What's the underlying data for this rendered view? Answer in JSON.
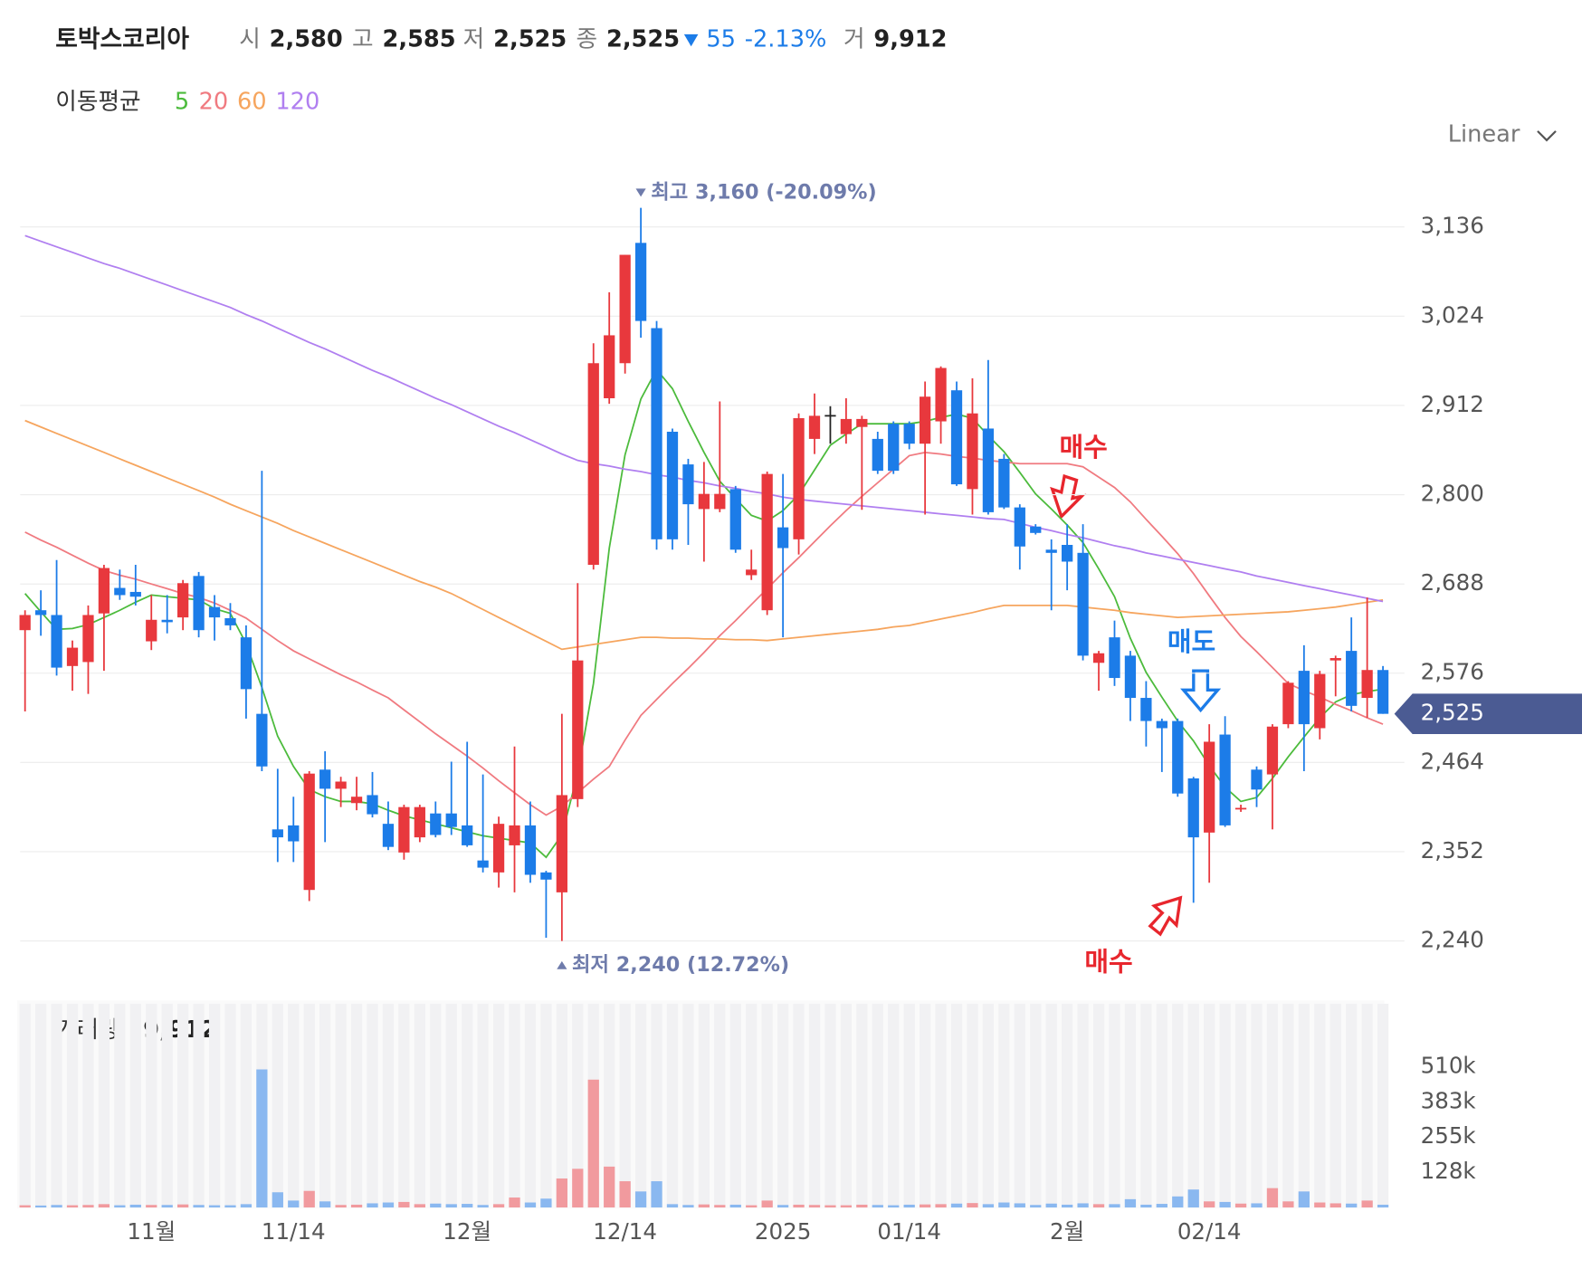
{
  "header": {
    "name": "토박스코리아",
    "fields": [
      {
        "label": "시",
        "value": "2,580"
      },
      {
        "label": "고",
        "value": "2,585"
      },
      {
        "label": "저",
        "value": "2,525"
      },
      {
        "label": "종",
        "value": "2,525"
      }
    ],
    "change": "55",
    "change_pct": "-2.13%",
    "volume_label": "거",
    "volume": "9,912"
  },
  "scale_selector": "Linear",
  "signals": [
    "매수",
    "매도",
    "매수"
  ],
  "chart_data": {
    "type": "candlestick",
    "legend_title": "이동평균",
    "up_color": "#e8383d",
    "down_color": "#1c7ce8",
    "flat_color": "#222222",
    "ylim": [
      2200,
      3220
    ],
    "yticks": [
      {
        "value": 2240,
        "label": "2,240"
      },
      {
        "value": 2352,
        "label": "2,352"
      },
      {
        "value": 2464,
        "label": "2,464"
      },
      {
        "value": 2576,
        "label": "2,576"
      },
      {
        "value": 2688,
        "label": "2,688"
      },
      {
        "value": 2800,
        "label": "2,800"
      },
      {
        "value": 2912,
        "label": "2,912"
      },
      {
        "value": 3024,
        "label": "3,024"
      },
      {
        "value": 3136,
        "label": "3,136"
      }
    ],
    "grid": true,
    "current_price": {
      "value": 2525,
      "label": "2,525"
    },
    "annotations": [
      {
        "kind": "max",
        "value": 3160,
        "text": "최고 3,160 (-20.09%)"
      },
      {
        "kind": "min",
        "value": 2240,
        "text": "최저 2,240 (12.72%)"
      }
    ],
    "categories": [
      null,
      null,
      null,
      null,
      null,
      null,
      null,
      null,
      "11월",
      null,
      null,
      null,
      null,
      null,
      null,
      null,
      null,
      "11/14",
      null,
      null,
      null,
      null,
      null,
      null,
      null,
      null,
      null,
      null,
      "12월",
      null,
      null,
      null,
      null,
      null,
      null,
      null,
      null,
      null,
      "12/14",
      null,
      null,
      null,
      null,
      null,
      null,
      null,
      null,
      null,
      "2025",
      null,
      null,
      null,
      null,
      null,
      null,
      null,
      "01/14",
      null,
      null,
      null,
      null,
      null,
      null,
      null,
      null,
      null,
      "2월",
      null,
      null,
      null,
      null,
      null,
      null,
      null,
      null,
      "02/14",
      null,
      null,
      null,
      null,
      null,
      null,
      null,
      null,
      null,
      null,
      null
    ],
    "open": [
      2630,
      2655,
      2649,
      2585,
      2590,
      2651,
      2683,
      2678,
      2616,
      2643,
      2646,
      2698,
      2659,
      2645,
      2621,
      2525,
      2380,
      2385,
      2304,
      2455,
      2431,
      2413,
      2423,
      2387,
      2351,
      2370,
      2400,
      2400,
      2385,
      2341,
      2326,
      2360,
      2385,
      2326,
      2301,
      2418,
      2712,
      2921,
      2965,
      3116,
      3009,
      2879,
      2838,
      2782,
      2782,
      2807,
      2699,
      2655,
      2759,
      2744,
      2870,
      2900,
      2876,
      2885,
      2870,
      2889,
      2889,
      2864,
      2892,
      2931,
      2807,
      2883,
      2845,
      2784,
      2760,
      2731,
      2737,
      2727,
      2589,
      2621,
      2598,
      2545,
      2516,
      2516,
      2444,
      2376,
      2499,
      2405,
      2455,
      2449,
      2512,
      2579,
      2507,
      2592,
      2604,
      2545,
      2580
    ],
    "high": [
      2655,
      2680,
      2718,
      2617,
      2661,
      2712,
      2706,
      2712,
      2674,
      2674,
      2693,
      2703,
      2674,
      2664,
      2636,
      2830,
      2456,
      2421,
      2453,
      2478,
      2446,
      2446,
      2452,
      2415,
      2411,
      2411,
      2415,
      2465,
      2490,
      2449,
      2396,
      2484,
      2415,
      2328,
      2525,
      2689,
      2990,
      3054,
      3101,
      3160,
      3018,
      2883,
      2845,
      2841,
      2917,
      2811,
      2731,
      2829,
      2826,
      2902,
      2927,
      2911,
      2921,
      2899,
      2879,
      2892,
      2892,
      2942,
      2961,
      2942,
      2946,
      2969,
      2851,
      2788,
      2763,
      2744,
      2763,
      2763,
      2604,
      2642,
      2604,
      2566,
      2519,
      2519,
      2446,
      2512,
      2522,
      2411,
      2459,
      2512,
      2566,
      2611,
      2579,
      2598,
      2646,
      2671,
      2585
    ],
    "low": [
      2528,
      2623,
      2573,
      2554,
      2550,
      2579,
      2668,
      2661,
      2605,
      2626,
      2630,
      2621,
      2617,
      2630,
      2519,
      2453,
      2339,
      2339,
      2290,
      2364,
      2408,
      2404,
      2395,
      2354,
      2342,
      2364,
      2370,
      2373,
      2358,
      2326,
      2307,
      2301,
      2313,
      2244,
      2240,
      2408,
      2706,
      2914,
      2952,
      2997,
      2731,
      2731,
      2737,
      2716,
      2778,
      2727,
      2693,
      2649,
      2621,
      2725,
      2851,
      2864,
      2864,
      2781,
      2826,
      2826,
      2857,
      2775,
      2864,
      2811,
      2775,
      2775,
      2782,
      2706,
      2750,
      2655,
      2680,
      2592,
      2554,
      2560,
      2516,
      2484,
      2452,
      2421,
      2288,
      2313,
      2383,
      2402,
      2408,
      2380,
      2507,
      2453,
      2493,
      2547,
      2528,
      2520,
      2525
    ],
    "close": [
      2649,
      2649,
      2583,
      2608,
      2649,
      2708,
      2674,
      2672,
      2643,
      2640,
      2689,
      2630,
      2646,
      2636,
      2556,
      2459,
      2370,
      2365,
      2450,
      2431,
      2440,
      2421,
      2399,
      2358,
      2408,
      2408,
      2373,
      2383,
      2360,
      2332,
      2387,
      2385,
      2323,
      2317,
      2423,
      2592,
      2965,
      3000,
      3101,
      3018,
      2744,
      2744,
      2788,
      2801,
      2801,
      2731,
      2706,
      2826,
      2733,
      2896,
      2899,
      2900,
      2895,
      2895,
      2830,
      2830,
      2864,
      2923,
      2959,
      2813,
      2902,
      2778,
      2784,
      2735,
      2752,
      2727,
      2716,
      2598,
      2601,
      2570,
      2545,
      2516,
      2507,
      2425,
      2370,
      2490,
      2385,
      2407,
      2430,
      2509,
      2564,
      2512,
      2575,
      2595,
      2535,
      2580,
      2525
    ],
    "moving_averages": [
      {
        "name": "5",
        "color": "#4cbb3c",
        "values": [
          2676,
          2653,
          2631,
          2632,
          2637,
          2646,
          2655,
          2665,
          2674,
          2672,
          2670,
          2668,
          2657,
          2651,
          2613,
          2558,
          2497,
          2459,
          2430,
          2421,
          2415,
          2415,
          2412,
          2404,
          2397,
          2392,
          2387,
          2382,
          2377,
          2372,
          2369,
          2366,
          2363,
          2345,
          2373,
          2450,
          2563,
          2733,
          2850,
          2920,
          2957,
          2933,
          2892,
          2853,
          2817,
          2795,
          2774,
          2767,
          2780,
          2800,
          2831,
          2862,
          2876,
          2889,
          2889,
          2889,
          2889,
          2892,
          2897,
          2901,
          2896,
          2874,
          2854,
          2828,
          2801,
          2782,
          2762,
          2740,
          2707,
          2672,
          2620,
          2577,
          2546,
          2516,
          2491,
          2460,
          2433,
          2415,
          2420,
          2444,
          2471,
          2496,
          2520,
          2540,
          2549,
          2553,
          2556
        ]
      },
      {
        "name": "20",
        "color": "#f07a80",
        "values": [
          2753,
          2743,
          2734,
          2724,
          2714,
          2705,
          2699,
          2694,
          2688,
          2682,
          2676,
          2671,
          2664,
          2655,
          2645,
          2631,
          2617,
          2604,
          2594,
          2584,
          2574,
          2565,
          2555,
          2545,
          2530,
          2515,
          2500,
          2486,
          2472,
          2457,
          2441,
          2426,
          2411,
          2398,
          2409,
          2426,
          2443,
          2459,
          2492,
          2523,
          2543,
          2563,
          2582,
          2602,
          2623,
          2642,
          2662,
          2682,
          2702,
          2721,
          2741,
          2761,
          2780,
          2798,
          2815,
          2832,
          2849,
          2853,
          2851,
          2848,
          2846,
          2843,
          2841,
          2839,
          2839,
          2839,
          2839,
          2835,
          2822,
          2809,
          2791,
          2769,
          2748,
          2726,
          2701,
          2673,
          2646,
          2622,
          2603,
          2583,
          2563,
          2554,
          2546,
          2537,
          2529,
          2520,
          2512
        ]
      },
      {
        "name": "60",
        "color": "#f6a55e",
        "values": [
          2893,
          2885,
          2877,
          2869,
          2861,
          2853,
          2845,
          2837,
          2829,
          2821,
          2813,
          2805,
          2797,
          2788,
          2780,
          2772,
          2764,
          2755,
          2747,
          2739,
          2731,
          2723,
          2715,
          2707,
          2699,
          2691,
          2684,
          2676,
          2666,
          2656,
          2646,
          2636,
          2626,
          2616,
          2606,
          2609,
          2612,
          2615,
          2618,
          2621,
          2621,
          2620,
          2620,
          2619,
          2619,
          2618,
          2618,
          2617,
          2619,
          2621,
          2623,
          2625,
          2627,
          2629,
          2631,
          2634,
          2636,
          2640,
          2644,
          2648,
          2652,
          2657,
          2661,
          2661,
          2661,
          2661,
          2661,
          2659,
          2657,
          2655,
          2652,
          2650,
          2648,
          2646,
          2647,
          2648,
          2649,
          2650,
          2651,
          2652,
          2653,
          2655,
          2657,
          2659,
          2662,
          2665,
          2668
        ]
      },
      {
        "name": "120",
        "color": "#b07ff0",
        "values": [
          3125,
          3118,
          3111,
          3104,
          3097,
          3090,
          3084,
          3077,
          3070,
          3063,
          3056,
          3049,
          3042,
          3035,
          3026,
          3018,
          3009,
          3000,
          2991,
          2983,
          2974,
          2965,
          2956,
          2948,
          2939,
          2930,
          2921,
          2913,
          2904,
          2895,
          2886,
          2878,
          2869,
          2860,
          2851,
          2843,
          2839,
          2836,
          2832,
          2829,
          2825,
          2822,
          2818,
          2815,
          2811,
          2808,
          2804,
          2801,
          2797,
          2794,
          2792,
          2790,
          2788,
          2786,
          2784,
          2782,
          2780,
          2778,
          2776,
          2774,
          2772,
          2770,
          2769,
          2764,
          2759,
          2755,
          2750,
          2746,
          2741,
          2736,
          2732,
          2727,
          2723,
          2719,
          2715,
          2711,
          2707,
          2703,
          2698,
          2694,
          2690,
          2686,
          2682,
          2678,
          2674,
          2670,
          2666
        ]
      }
    ],
    "volume": {
      "label": "거래량",
      "current": 9912,
      "current_label": "9,912",
      "up_color": "#f19a9e",
      "down_color": "#8ab8f0",
      "ylim": [
        0,
        738000
      ],
      "yticks": [
        {
          "value": 127500,
          "label": "128k"
        },
        {
          "value": 255000,
          "label": "255k"
        },
        {
          "value": 382500,
          "label": "383k"
        },
        {
          "value": 510000,
          "label": "510k"
        }
      ],
      "values": [
        8000,
        7000,
        9000,
        8000,
        9000,
        12000,
        8000,
        10000,
        9000,
        9000,
        11000,
        9000,
        8000,
        8000,
        12000,
        500000,
        55000,
        25000,
        60000,
        22000,
        9000,
        10000,
        15000,
        18000,
        20000,
        12000,
        14000,
        12000,
        13000,
        9000,
        12000,
        36000,
        18000,
        32000,
        105000,
        140000,
        463000,
        148000,
        95000,
        58000,
        95000,
        12000,
        9000,
        11000,
        9000,
        10000,
        8000,
        25000,
        9000,
        10000,
        9000,
        8000,
        8000,
        10000,
        9000,
        8000,
        10000,
        11000,
        12000,
        14000,
        16000,
        12000,
        18000,
        15000,
        9000,
        14000,
        10000,
        15000,
        12000,
        12000,
        30000,
        10000,
        13000,
        40000,
        65000,
        22000,
        20000,
        14000,
        15000,
        70000,
        22000,
        58000,
        18000,
        15000,
        14000,
        25000,
        9912
      ]
    }
  }
}
